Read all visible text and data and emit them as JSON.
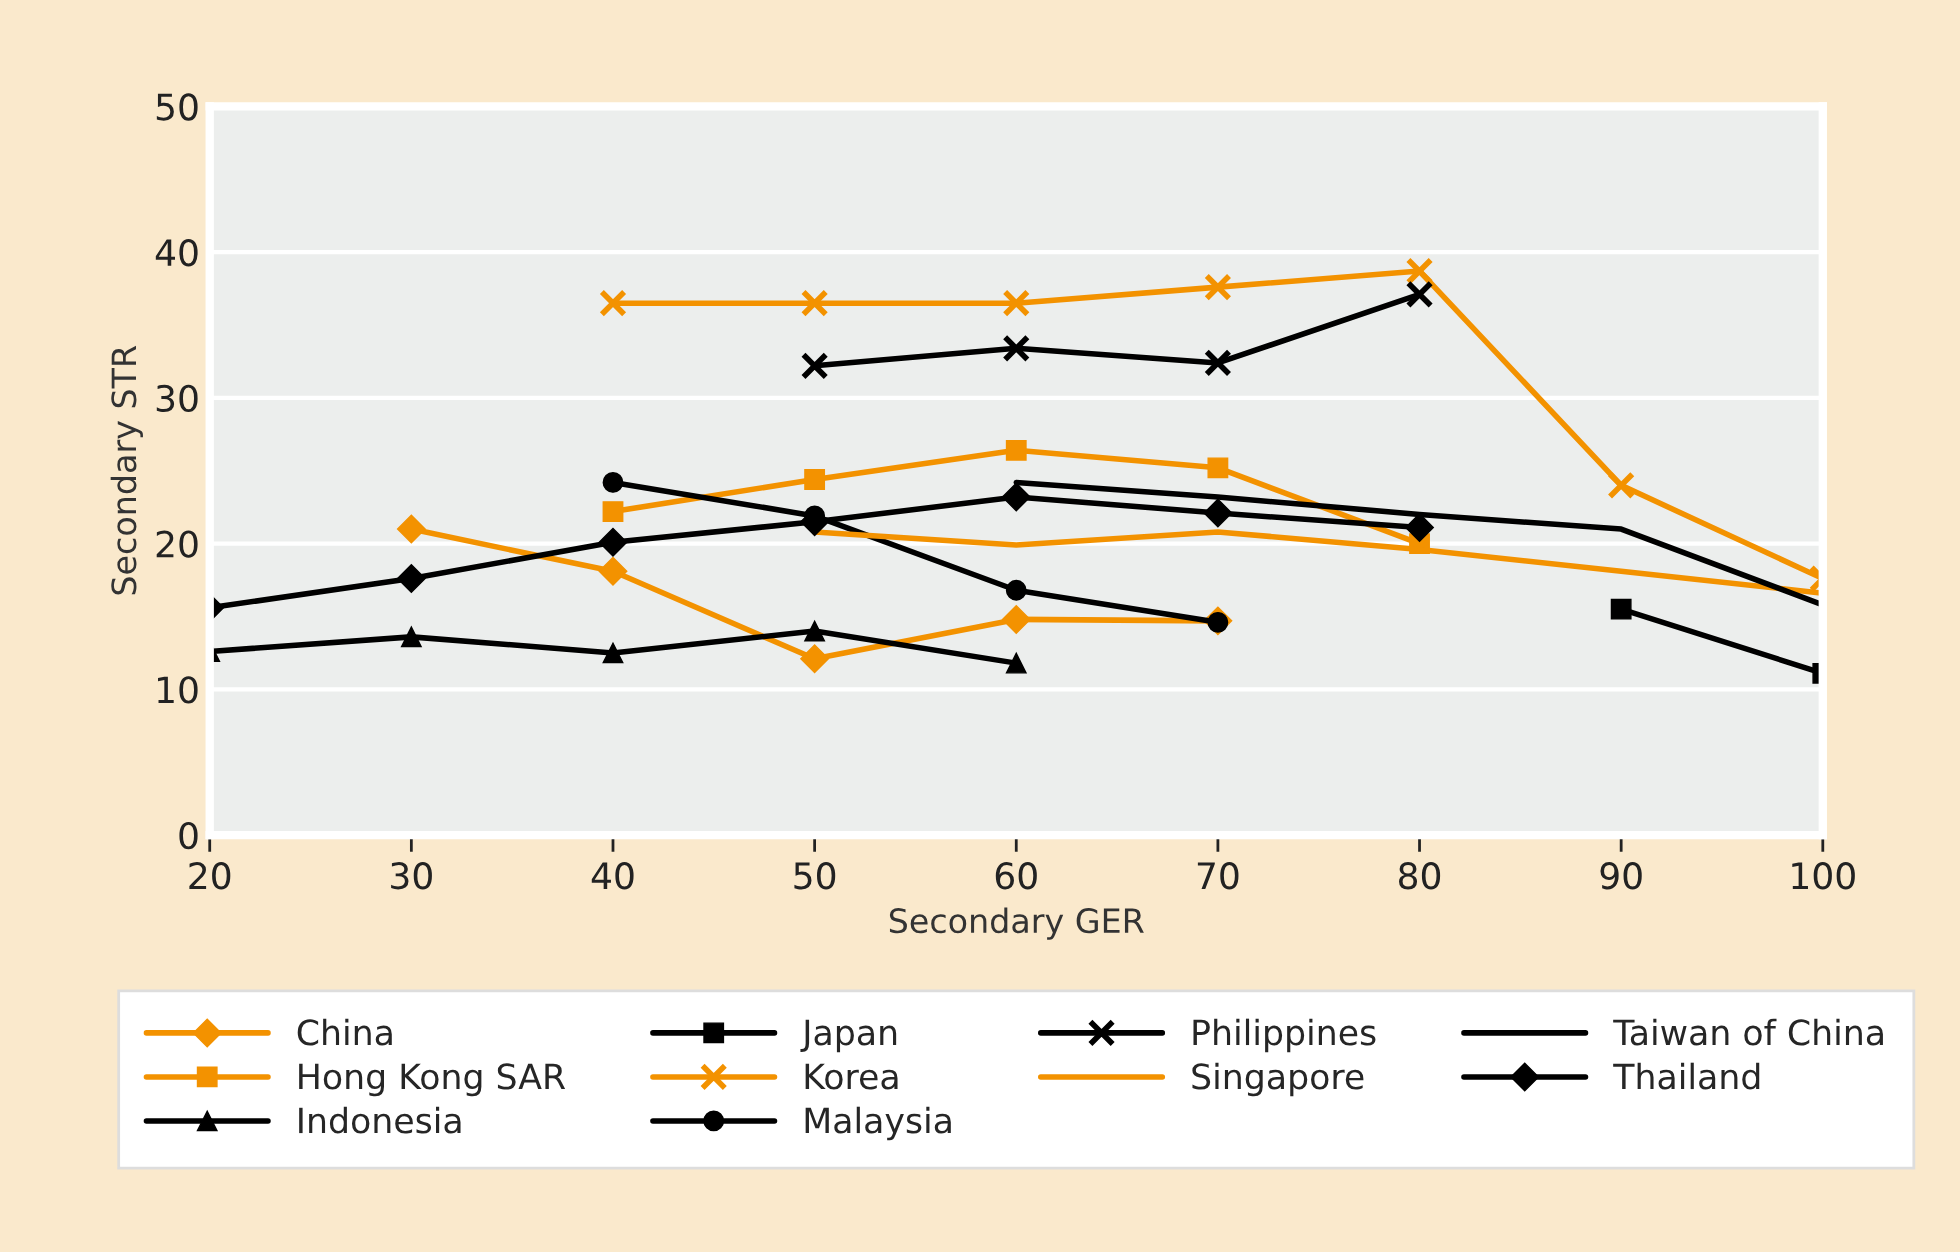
{
  "chart_data": {
    "type": "line",
    "xlabel": "Secondary GER",
    "ylabel": "Secondary STR",
    "xlim": [
      20,
      100
    ],
    "xticks": [
      20,
      30,
      40,
      50,
      60,
      70,
      80,
      90,
      100
    ],
    "ylim": [
      0,
      50
    ],
    "yticks": [
      0,
      10,
      20,
      30,
      40,
      50
    ],
    "grid": "y",
    "legend": "bottom",
    "line_style": "solid",
    "series": [
      {
        "name": "China",
        "color": "#f39200",
        "marker": "diamond",
        "x": [
          30,
          40,
          50,
          60,
          70
        ],
        "values": [
          21,
          18.1,
          12.1,
          14.8,
          14.7
        ]
      },
      {
        "name": "Hong Kong SAR",
        "color": "#f39200",
        "marker": "square",
        "x": [
          40,
          50,
          60,
          70,
          80
        ],
        "values": [
          22.2,
          24.4,
          26.4,
          25.2,
          20
        ]
      },
      {
        "name": "Indonesia",
        "color": "#000000",
        "marker": "triangle",
        "x": [
          20,
          30,
          40,
          50,
          60
        ],
        "values": [
          12.6,
          13.6,
          12.5,
          14,
          11.8
        ]
      },
      {
        "name": "Japan",
        "color": "#000000",
        "marker": "square",
        "x": [
          90,
          100
        ],
        "values": [
          15.5,
          11.1
        ]
      },
      {
        "name": "Korea",
        "color": "#f39200",
        "marker": "cross",
        "x": [
          40,
          50,
          60,
          70,
          80,
          90,
          100
        ],
        "values": [
          36.5,
          36.5,
          36.5,
          37.6,
          38.7,
          24,
          17.6
        ]
      },
      {
        "name": "Malaysia",
        "color": "#000000",
        "marker": "circle",
        "x": [
          40,
          50,
          60,
          70
        ],
        "values": [
          24.2,
          21.9,
          16.8,
          14.6
        ]
      },
      {
        "name": "Philippines",
        "color": "#000000",
        "marker": "cross",
        "x": [
          50,
          60,
          70,
          80
        ],
        "values": [
          32.2,
          33.4,
          32.4,
          37.1
        ]
      },
      {
        "name": "Singapore",
        "color": "#f39200",
        "marker": "none",
        "x": [
          50,
          60,
          70,
          80,
          90,
          100
        ],
        "values": [
          20.8,
          19.9,
          20.8,
          19.6,
          18.1,
          16.6
        ]
      },
      {
        "name": "Taiwan of China",
        "color": "#000000",
        "marker": "none",
        "x": [
          60,
          70,
          80,
          90,
          100
        ],
        "values": [
          24.2,
          23.2,
          22,
          21,
          15.8
        ]
      },
      {
        "name": "Thailand",
        "color": "#000000",
        "marker": "diamond",
        "x": [
          20,
          30,
          40,
          50,
          60,
          70,
          80
        ],
        "values": [
          15.6,
          17.6,
          20.1,
          21.5,
          23.2,
          22.1,
          21.1
        ]
      }
    ]
  }
}
